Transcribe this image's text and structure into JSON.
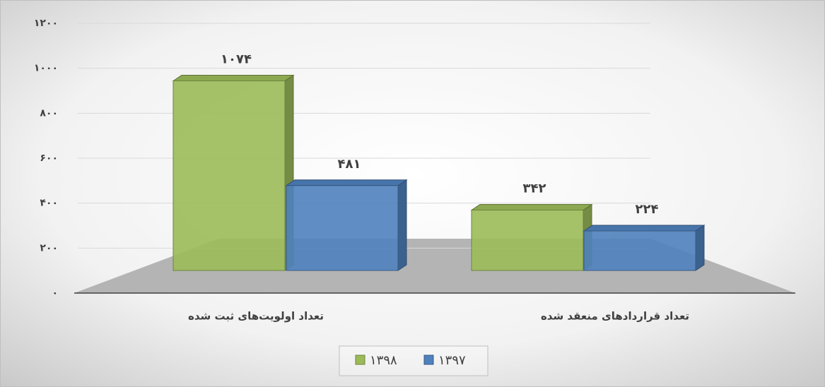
{
  "chart_data": {
    "type": "bar3d",
    "categories": [
      "تعداد اولویت‌های ثبت شده",
      "تعداد قراردادهای منعقد شده"
    ],
    "series": [
      {
        "name": "۱۳۹۸",
        "color": "#9bbb59",
        "values": [
          1074,
          342
        ],
        "value_labels": [
          "۱۰۷۴",
          "۳۴۲"
        ]
      },
      {
        "name": "۱۳۹۷",
        "color": "#4f81bd",
        "values": [
          481,
          224
        ],
        "value_labels": [
          "۴۸۱",
          "۲۲۴"
        ]
      }
    ],
    "ylim": [
      0,
      1200
    ],
    "yticks": [
      {
        "value": 0,
        "label": "۰"
      },
      {
        "value": 200,
        "label": "۲۰۰"
      },
      {
        "value": 400,
        "label": "۴۰۰"
      },
      {
        "value": 600,
        "label": "۶۰۰"
      },
      {
        "value": 800,
        "label": "۸۰۰"
      },
      {
        "value": 1000,
        "label": "۱۰۰۰"
      },
      {
        "value": 1200,
        "label": "۱۲۰۰"
      }
    ],
    "grid": true,
    "legend": "bottom"
  }
}
